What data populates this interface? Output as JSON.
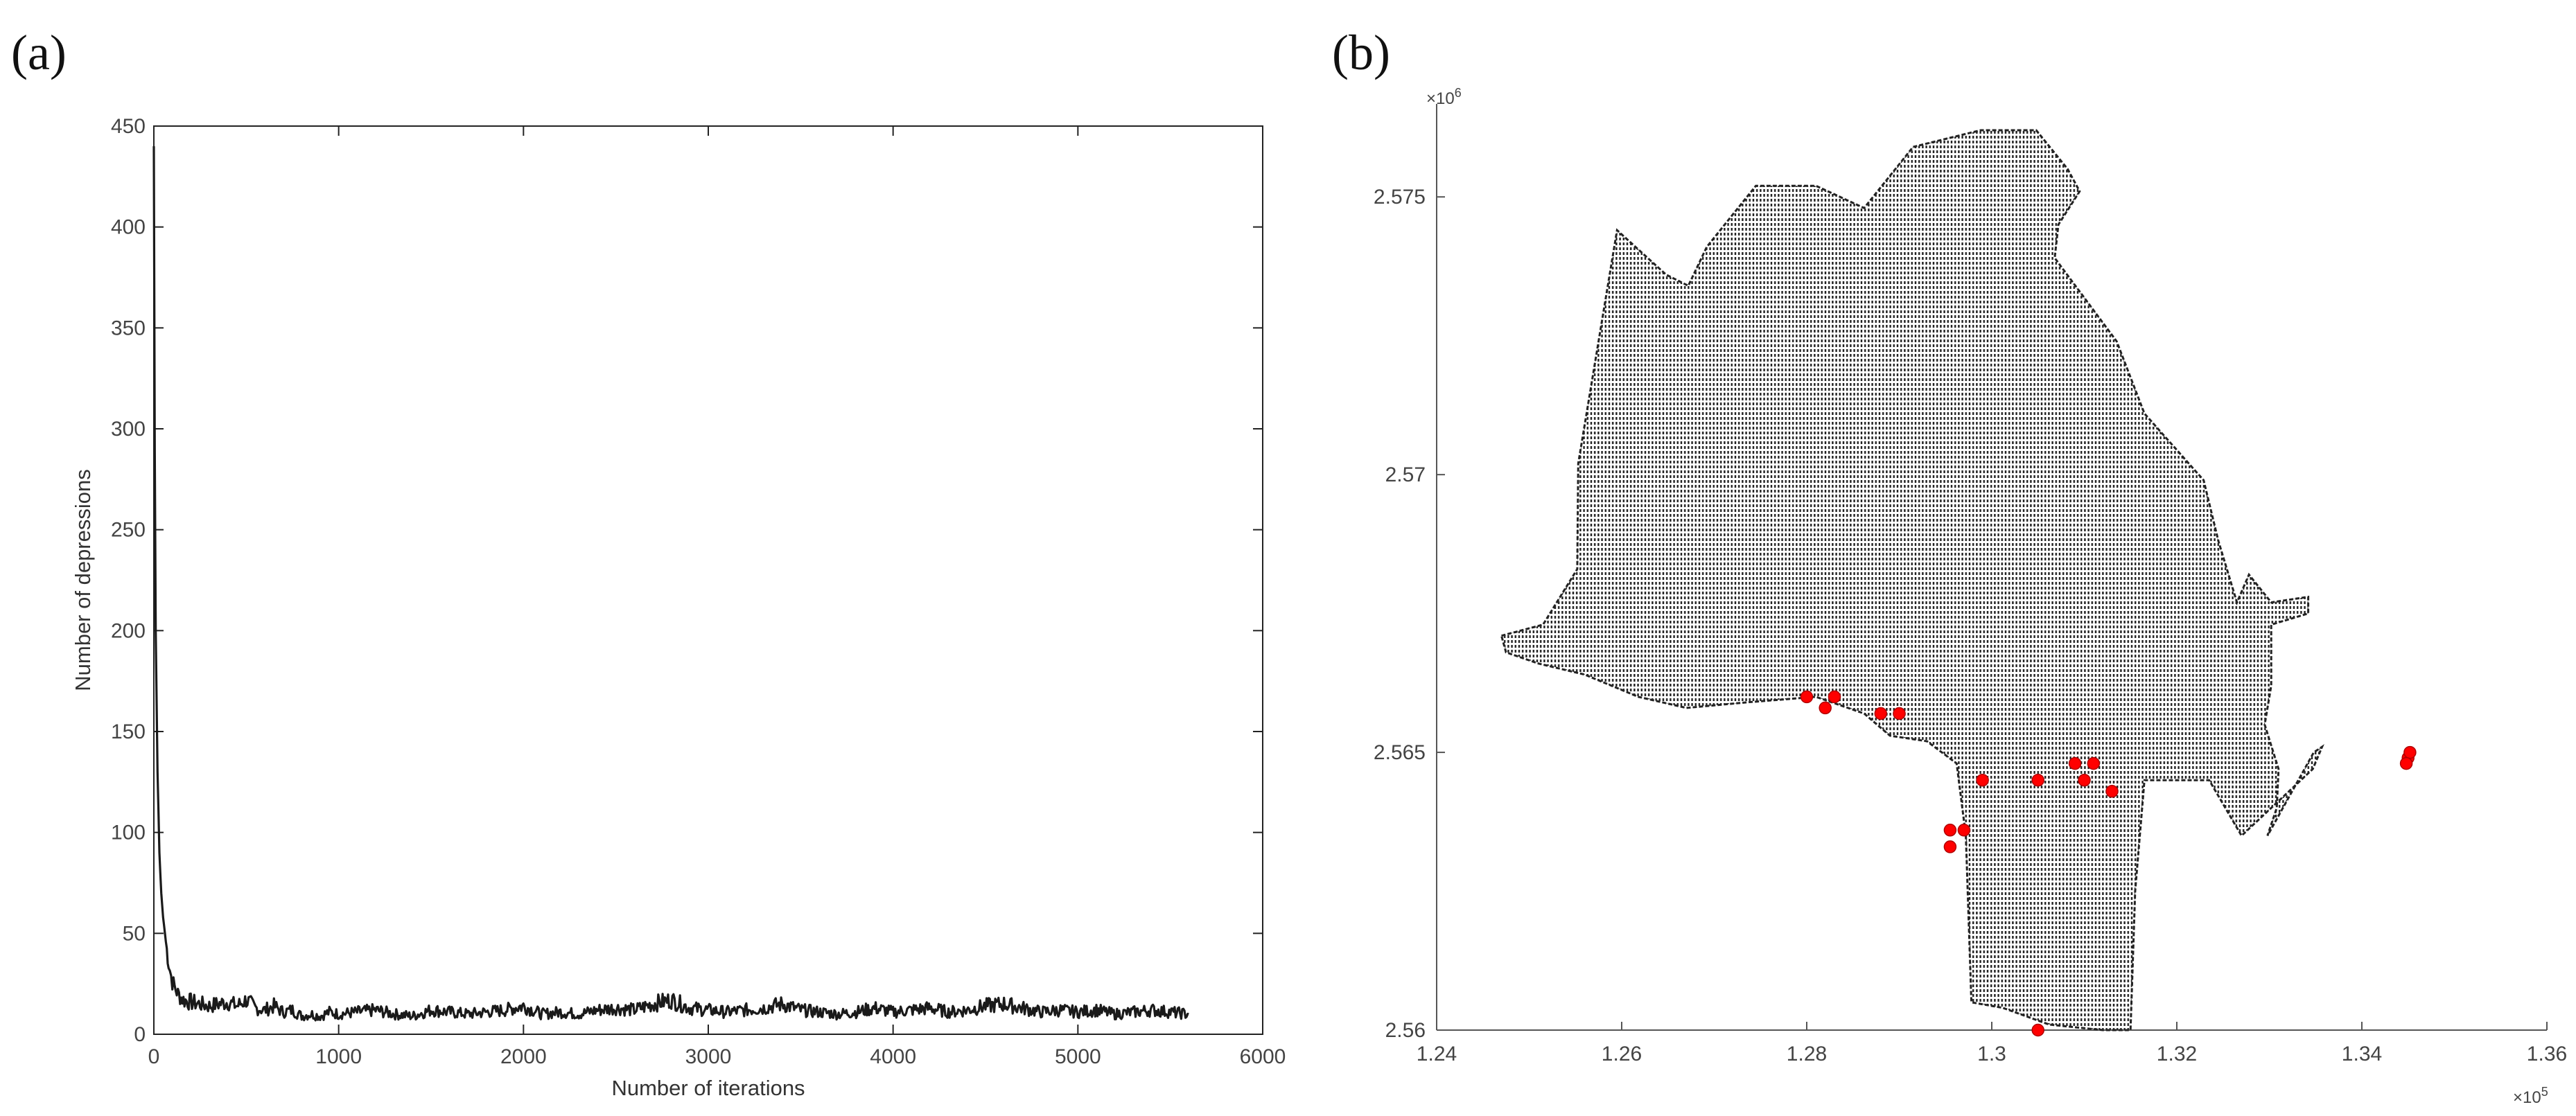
{
  "panels": {
    "a_label": "(a)",
    "b_label": "(b)"
  },
  "chart_data": [
    {
      "type": "line",
      "panel": "(a)",
      "xlabel": "Number of iterations",
      "ylabel": "Number of depressions",
      "xlim": [
        0,
        6000
      ],
      "ylim": [
        0,
        450
      ],
      "xticks": [
        0,
        1000,
        2000,
        3000,
        4000,
        5000,
        6000
      ],
      "yticks": [
        0,
        50,
        100,
        150,
        200,
        250,
        300,
        350,
        400,
        450
      ],
      "series": [
        {
          "color": "#1a1a1a",
          "x": [
            0,
            5,
            10,
            20,
            30,
            40,
            50,
            60,
            70,
            80,
            100,
            130,
            160,
            200,
            250,
            300,
            350,
            400,
            450,
            500,
            550,
            600,
            650,
            700,
            750,
            800,
            850,
            900,
            950,
            1000,
            1100,
            1200,
            1300,
            1400,
            1500,
            1600,
            1700,
            1800,
            1900,
            2000,
            2100,
            2200,
            2300,
            2400,
            2500,
            2600,
            2700,
            2800,
            2900,
            3000,
            3100,
            3200,
            3300,
            3400,
            3500,
            3600,
            3700,
            3800,
            3900,
            4000,
            4100,
            4200,
            4300,
            4400,
            4500,
            4600,
            4700,
            4800,
            4900,
            5000,
            5100,
            5200,
            5300,
            5400,
            5500,
            5600
          ],
          "y": [
            440,
            290,
            200,
            130,
            90,
            70,
            58,
            50,
            42,
            35,
            26,
            20,
            17,
            16,
            15,
            14,
            15,
            16,
            14,
            17,
            13,
            12,
            14,
            11,
            12,
            9,
            10,
            9,
            11,
            10,
            11,
            12,
            10,
            9,
            12,
            11,
            10,
            11,
            12,
            14,
            10,
            11,
            10,
            12,
            13,
            12,
            15,
            17,
            13,
            12,
            11,
            12,
            13,
            15,
            12,
            11,
            10,
            11,
            13,
            11,
            12,
            13,
            11,
            12,
            14,
            15,
            13,
            11,
            12,
            11,
            12,
            10,
            11,
            12,
            11,
            10
          ]
        }
      ]
    },
    {
      "type": "scatter",
      "panel": "(b)",
      "xlim": [
        1.24,
        1.36
      ],
      "ylim": [
        2.56,
        2.5763
      ],
      "xticks": [
        "1.24",
        "1.26",
        "1.28",
        "1.3",
        "1.32",
        "1.34",
        "1.36"
      ],
      "yticks": [
        "2.56",
        "2.565",
        "2.57",
        "2.575"
      ],
      "x_exponent": "×10",
      "x_exponent_power": "5",
      "y_exponent": "×10",
      "y_exponent_power": "6",
      "grid_color": "#222222",
      "marker_color": "#ff0000",
      "region_outline": [
        [
          1.247,
          2.5671
        ],
        [
          1.2515,
          2.5673
        ],
        [
          1.2552,
          2.5683
        ],
        [
          1.2553,
          2.5702
        ],
        [
          1.2595,
          2.5744
        ],
        [
          1.2648,
          2.5736
        ],
        [
          1.2672,
          2.5734
        ],
        [
          1.2692,
          2.5741
        ],
        [
          1.2745,
          2.5752
        ],
        [
          1.281,
          2.5752
        ],
        [
          1.2862,
          2.5748
        ],
        [
          1.2915,
          2.5759
        ],
        [
          1.2988,
          2.5762
        ],
        [
          1.3048,
          2.5762
        ],
        [
          1.3082,
          2.5755
        ],
        [
          1.3095,
          2.5751
        ],
        [
          1.3072,
          2.5745
        ],
        [
          1.3068,
          2.5739
        ],
        [
          1.3135,
          2.5724
        ],
        [
          1.3165,
          2.5711
        ],
        [
          1.3229,
          2.5699
        ],
        [
          1.3245,
          2.5688
        ],
        [
          1.3265,
          2.5677
        ],
        [
          1.3278,
          2.5682
        ],
        [
          1.3302,
          2.5677
        ],
        [
          1.3342,
          2.5678
        ],
        [
          1.3342,
          2.5675
        ],
        [
          1.3302,
          2.5673
        ],
        [
          1.3302,
          2.5662
        ],
        [
          1.3295,
          2.5655
        ],
        [
          1.331,
          2.5647
        ],
        [
          1.3308,
          2.564
        ],
        [
          1.3298,
          2.5635
        ],
        [
          1.3348,
          2.565
        ],
        [
          1.3357,
          2.5651
        ],
        [
          1.3347,
          2.5647
        ],
        [
          1.327,
          2.5635
        ],
        [
          1.3235,
          2.5645
        ],
        [
          1.3165,
          2.5645
        ],
        [
          1.3155,
          2.5625
        ],
        [
          1.315,
          2.56
        ],
        [
          1.312,
          2.56
        ],
        [
          1.3062,
          2.5601
        ],
        [
          1.3012,
          2.5604
        ],
        [
          1.2978,
          2.5605
        ],
        [
          1.2972,
          2.5635
        ],
        [
          1.2962,
          2.5648
        ],
        [
          1.293,
          2.5652
        ],
        [
          1.289,
          2.5653
        ],
        [
          1.2862,
          2.5657
        ],
        [
          1.281,
          2.566
        ],
        [
          1.2735,
          2.5659
        ],
        [
          1.267,
          2.5658
        ],
        [
          1.2618,
          2.566
        ],
        [
          1.256,
          2.5664
        ],
        [
          1.251,
          2.5666
        ],
        [
          1.2475,
          2.5668
        ]
      ],
      "points": [
        [
          1.28,
          2.566
        ],
        [
          1.282,
          2.5658
        ],
        [
          1.283,
          2.566
        ],
        [
          1.288,
          2.5657
        ],
        [
          1.29,
          2.5657
        ],
        [
          1.299,
          2.5645
        ],
        [
          1.305,
          2.5645
        ],
        [
          1.309,
          2.5648
        ],
        [
          1.31,
          2.5645
        ],
        [
          1.311,
          2.5648
        ],
        [
          1.313,
          2.5643
        ],
        [
          1.2955,
          2.5636
        ],
        [
          1.297,
          2.5636
        ],
        [
          1.2955,
          2.5633
        ],
        [
          1.305,
          2.56
        ],
        [
          1.345,
          2.5649
        ],
        [
          1.3452,
          2.565
        ],
        [
          1.3448,
          2.5648
        ]
      ]
    }
  ]
}
